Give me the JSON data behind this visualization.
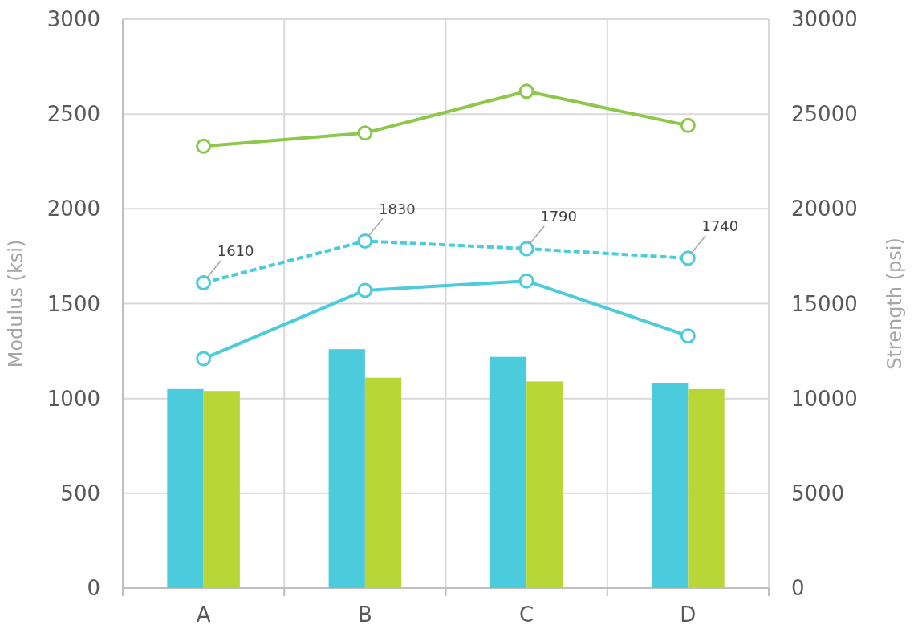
{
  "chart_data": {
    "type": "bar",
    "ylabel": "Modulus (ksi)",
    "y2label": "Strength (psi)",
    "categories": [
      "A",
      "B",
      "C",
      "D"
    ],
    "series": [
      {
        "color": "#4bcbdb",
        "values": [
          1050,
          1260,
          1220,
          1080
        ]
      },
      {
        "color": "#b8d737",
        "values": [
          1040,
          1110,
          1090,
          1050
        ]
      },
      {
        "type": "line",
        "axis": "y2",
        "color": "#8cc84b",
        "marker": "circle",
        "values": [
          23300,
          24000,
          26200,
          24400
        ]
      },
      {
        "type": "line",
        "axis": "y2",
        "color": "#4bcbdb",
        "marker": "circle",
        "values": [
          12100,
          15700,
          16200,
          13300
        ]
      },
      {
        "type": "line",
        "color": "#4bcbdb",
        "line_style": "dashed",
        "marker": "circle",
        "values": [
          1610,
          1830,
          1790,
          1740
        ],
        "value_labels": [
          "1610",
          "1830",
          "1790",
          "1740"
        ]
      }
    ],
    "ylim": [
      0,
      3000
    ],
    "yticks": [
      0,
      500,
      1000,
      1500,
      2000,
      2500,
      3000
    ],
    "y2lim": [
      0,
      30000
    ],
    "y2ticks": [
      0,
      5000,
      10000,
      15000,
      20000,
      25000,
      30000
    ],
    "grid": true
  }
}
